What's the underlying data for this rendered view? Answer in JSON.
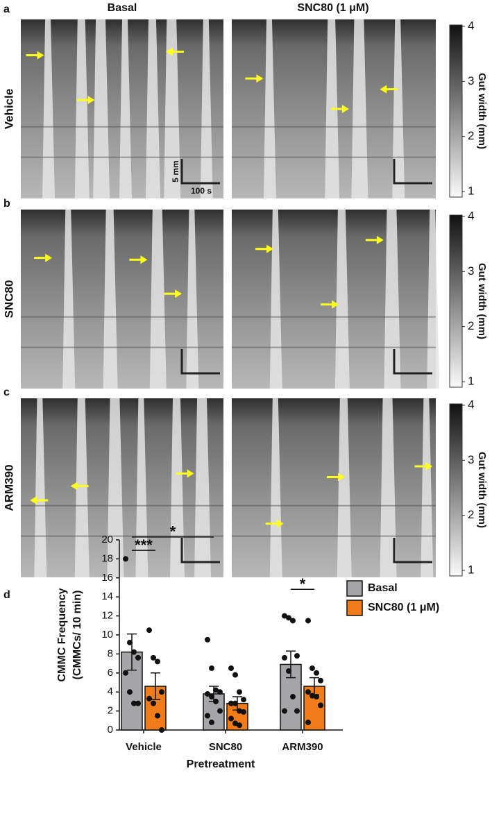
{
  "column_titles": [
    "Basal",
    "SNC80 (1 μM)"
  ],
  "rows": [
    {
      "letter": "a",
      "label": "Vehicle"
    },
    {
      "letter": "b",
      "label": "SNC80"
    },
    {
      "letter": "c",
      "label": "ARM390"
    }
  ],
  "scale_bar": {
    "y_label": "5 mm",
    "x_label": "100 s"
  },
  "colorbar": {
    "title": "Gut width (mm)",
    "lim": [
      1,
      4
    ],
    "ticks": [
      1,
      2,
      3,
      4
    ]
  },
  "chart_data": {
    "type": "bar",
    "letter": "d",
    "ylabel": [
      "CMMC Frequency",
      "(CMMCs/ 10 min)"
    ],
    "xlabel": "Pretreatment",
    "categories": [
      "Vehicle",
      "SNC80",
      "ARM390"
    ],
    "series": [
      {
        "name": "Basal",
        "color": "#a6a6a8",
        "values": [
          8.2,
          3.8,
          6.9
        ],
        "errors": [
          1.9,
          0.8,
          1.4
        ],
        "points": [
          [
            18,
            9.2,
            8.2,
            7.6,
            6,
            4,
            2.8,
            2.8
          ],
          [
            9.5,
            6.5,
            4.2,
            4,
            3.8,
            3.5,
            3,
            2,
            1.5,
            0.8
          ],
          [
            12,
            11.8,
            11.5,
            7.8,
            7.6,
            6.2,
            3.5,
            2,
            2
          ]
        ]
      },
      {
        "name": "SNC80 (1 μM)",
        "color": "#f07d1a",
        "values": [
          4.6,
          2.8,
          4.6
        ],
        "errors": [
          1.4,
          0.7,
          0.9
        ],
        "points": [
          [
            10.5,
            7.6,
            7.2,
            4,
            3.3,
            2.8,
            1.5,
            0
          ],
          [
            6.5,
            5.8,
            4,
            3.2,
            2.8,
            2.8,
            2,
            1.9,
            1.2,
            0.7,
            0.5
          ],
          [
            11.5,
            6.5,
            6,
            5.2,
            4,
            3.6,
            3.5,
            2.6,
            0.8
          ]
        ]
      }
    ],
    "ylim": [
      0,
      20
    ],
    "yticks": [
      0,
      2,
      4,
      6,
      8,
      10,
      12,
      14,
      16,
      18,
      20
    ],
    "significance": [
      {
        "label": "***",
        "y": 18.9,
        "from": [
          0,
          0
        ],
        "to": [
          0,
          1
        ]
      },
      {
        "label": "*",
        "y": 20.3,
        "from": [
          0,
          0
        ],
        "to": [
          1,
          0
        ]
      },
      {
        "label": "*",
        "y": 14.8,
        "from": [
          2,
          0
        ],
        "to": [
          2,
          1
        ]
      }
    ]
  }
}
